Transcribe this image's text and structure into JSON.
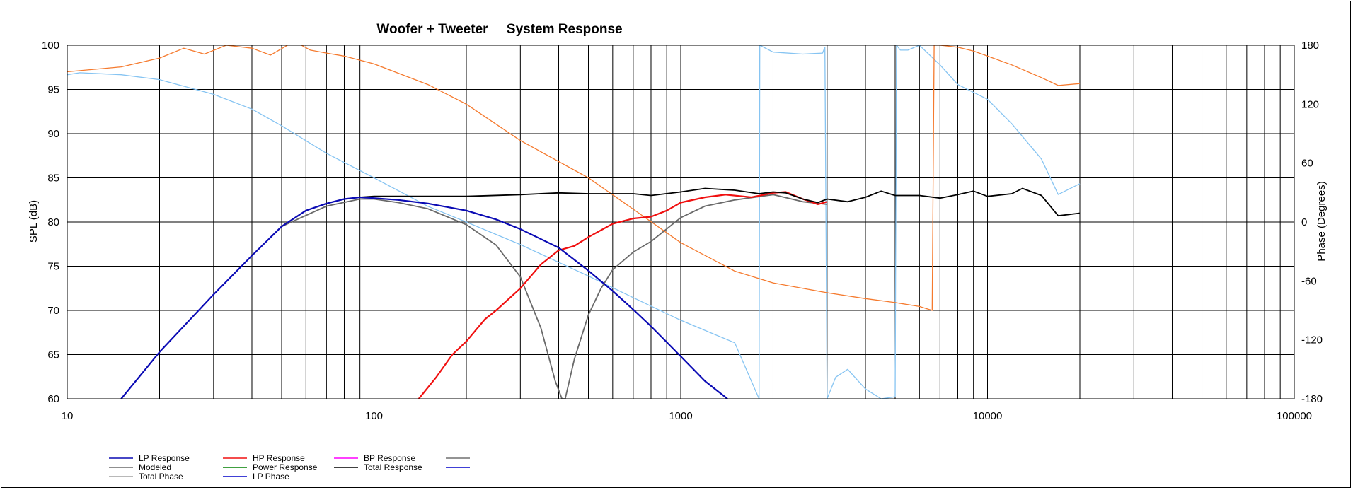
{
  "chart_data": {
    "type": "line",
    "title": "Woofer + Tweeter     System Response",
    "xlabel": "",
    "ylabel": "SPL (dB)",
    "y2label": "Phase (Degrees)",
    "xscale": "log",
    "xlim": [
      10,
      100000
    ],
    "ylim": [
      60,
      100
    ],
    "y2lim": [
      -180,
      180
    ],
    "grid": true,
    "x_ticks": [
      "10",
      "100",
      "1000",
      "10000",
      "100000"
    ],
    "y_ticks": [
      "60",
      "65",
      "70",
      "75",
      "80",
      "85",
      "90",
      "95",
      "100"
    ],
    "y2_ticks": [
      "-180",
      "-120",
      "-60",
      "0",
      "60",
      "120",
      "180"
    ],
    "legend_position": "bottom-left",
    "series": [
      {
        "name": "LP Response",
        "color": "#0a0ab4",
        "axis": "left",
        "x": [
          15,
          20,
          30,
          40,
          50,
          60,
          70,
          80,
          90,
          100,
          120,
          150,
          200,
          250,
          300,
          400,
          500,
          600,
          700,
          800,
          1000,
          1200,
          1420
        ],
        "y": [
          60,
          65.3,
          71.8,
          76.2,
          79.5,
          81.3,
          82.1,
          82.6,
          82.8,
          82.7,
          82.5,
          82.1,
          81.3,
          80.3,
          79.2,
          77.1,
          74.5,
          72.2,
          70.1,
          68.2,
          64.8,
          62,
          60
        ]
      },
      {
        "name": "HP Response",
        "color": "#f01010",
        "axis": "left",
        "x": [
          140,
          160,
          180,
          200,
          230,
          250,
          300,
          350,
          400,
          450,
          500,
          600,
          700,
          800,
          900,
          1000,
          1200,
          1400,
          1700,
          2000,
          2200,
          2500,
          2800,
          3000
        ],
        "y": [
          60,
          62.5,
          65,
          66.5,
          69,
          70,
          72.5,
          75.2,
          76.8,
          77.3,
          78.3,
          79.8,
          80.4,
          80.6,
          81.3,
          82.2,
          82.8,
          83.1,
          82.8,
          83.3,
          83.4,
          82.6,
          82,
          82.3
        ]
      },
      {
        "name": "BP Response",
        "color": "#ff00ff",
        "axis": "left",
        "x": [],
        "y": []
      },
      {
        "name": "",
        "color": "#707070",
        "axis": "left",
        "x": [],
        "y": []
      },
      {
        "name": "Modeled",
        "color": "#6a6a6a",
        "axis": "left",
        "x": [
          50,
          70,
          90,
          100,
          120,
          150,
          200,
          250,
          300,
          350,
          390,
          410,
          420,
          450,
          500,
          550,
          600,
          700,
          800,
          1000,
          1200,
          1500,
          2000,
          2500,
          3000
        ],
        "y": [
          79.5,
          81.8,
          82.6,
          82.6,
          82.2,
          81.5,
          79.7,
          77.4,
          73.8,
          68,
          62,
          60,
          60,
          64.5,
          69.5,
          72.5,
          74.6,
          76.6,
          77.8,
          80.5,
          81.8,
          82.5,
          83.1,
          82.3,
          82
        ]
      },
      {
        "name": "Power Response",
        "color": "#008000",
        "axis": "left",
        "x": [],
        "y": []
      },
      {
        "name": "Total Response",
        "color": "#000000",
        "axis": "left",
        "x": [
          90,
          100,
          150,
          200,
          300,
          400,
          500,
          700,
          800,
          1000,
          1200,
          1500,
          1800,
          2000,
          2200,
          2500,
          2800,
          3000,
          3500,
          4000,
          4500,
          5000,
          6000,
          7000,
          8000,
          9000,
          10000,
          12000,
          13000,
          15000,
          17000,
          20000
        ],
        "y": [
          82.8,
          82.9,
          82.9,
          82.9,
          83.1,
          83.3,
          83.2,
          83.2,
          83,
          83.4,
          83.8,
          83.6,
          83.2,
          83.4,
          83.3,
          82.6,
          82.2,
          82.6,
          82.3,
          82.8,
          83.5,
          83,
          83,
          82.7,
          83.1,
          83.5,
          82.9,
          83.2,
          83.8,
          83,
          80.7,
          81
        ]
      },
      {
        "name": "",
        "color": "#0000c8",
        "axis": "left",
        "x": [],
        "y": []
      },
      {
        "name": "Total Phase",
        "color": "#a0a0a0",
        "axis": "right",
        "x": [],
        "y": []
      },
      {
        "name": "LP Phase",
        "color": "#0000c8",
        "axis": "right",
        "x": [],
        "y": []
      },
      {
        "name": "",
        "color": "#f57a2e",
        "axis": "right",
        "x": [
          10,
          15,
          20,
          24,
          28,
          33,
          40,
          46,
          55,
          62,
          70,
          80,
          100,
          150,
          200,
          300,
          500,
          700,
          1000,
          1500,
          2000,
          3000,
          4000,
          5000,
          6000,
          6600,
          6700,
          7000,
          8000,
          9000,
          10000,
          12000,
          15000,
          17000,
          20000
        ],
        "y": [
          153,
          158,
          167,
          177,
          171,
          180,
          177,
          170,
          184,
          175,
          172,
          169,
          161,
          140,
          120,
          83,
          45,
          13,
          -21,
          -50,
          -62,
          -72,
          -78,
          -82,
          -86,
          -90,
          180,
          180,
          178,
          174,
          169,
          160,
          147,
          139,
          141
        ]
      },
      {
        "name": "",
        "color": "#86c4f2",
        "axis": "right",
        "x": [
          10,
          11,
          15,
          20,
          30,
          40,
          50,
          70,
          100,
          150,
          200,
          300,
          500,
          700,
          1000,
          1500,
          1800,
          1810,
          2000,
          2500,
          2900,
          2950,
          3000,
          3200,
          3500,
          4000,
          4500,
          5000,
          5050,
          5200,
          5500,
          6000,
          7000,
          8000,
          10000,
          12000,
          15000,
          17000,
          20000
        ],
        "y": [
          150,
          152,
          150,
          145,
          130,
          115,
          98,
          70,
          45,
          16,
          0,
          -23,
          -55,
          -77,
          -100,
          -123,
          -180,
          180,
          173,
          171,
          172,
          178,
          -180,
          -158,
          -150,
          -170,
          -180,
          -178,
          180,
          175,
          175,
          180,
          160,
          140,
          125,
          100,
          64,
          28,
          39
        ]
      }
    ]
  }
}
